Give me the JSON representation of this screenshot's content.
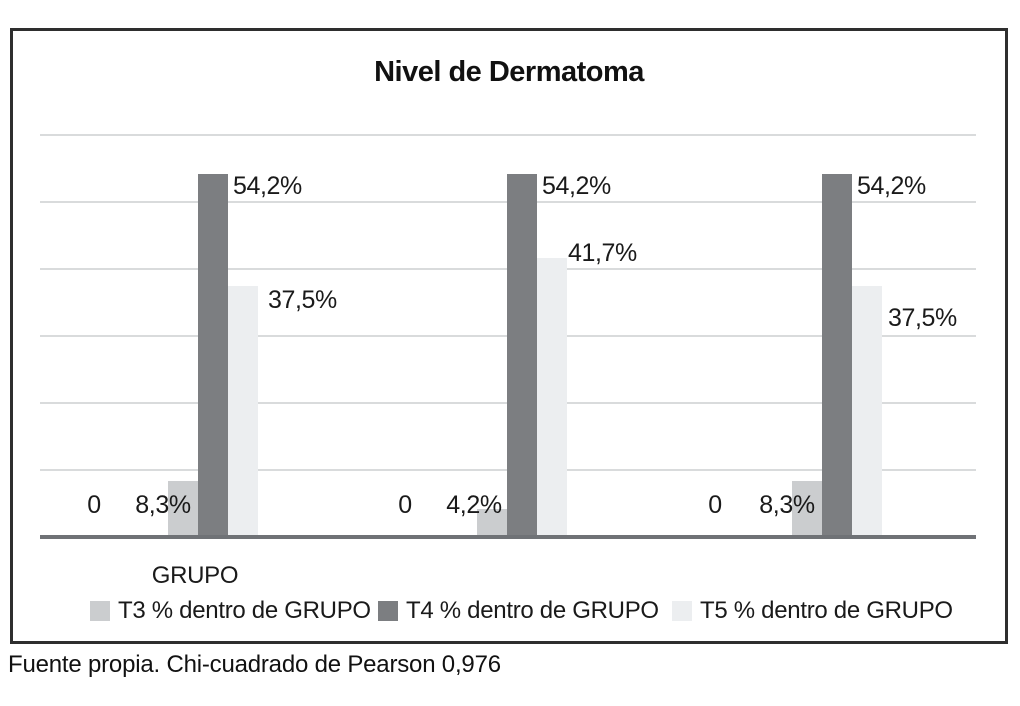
{
  "chart_data": {
    "type": "bar",
    "title": "Nivel de Dermatoma",
    "x_axis_label": "GRUPO",
    "caption": "Fuente propia. Chi-cuadrado de Pearson 0,976",
    "ylim": [
      0,
      60
    ],
    "gridline_step": 10,
    "grid": true,
    "legend_position": "bottom",
    "group_count": 3,
    "categories": [
      "",
      "",
      ""
    ],
    "series": [
      {
        "name": "T3 % dentro de GRUPO",
        "color": "#cbcdcf",
        "values": [
          8.3,
          4.2,
          8.3
        ],
        "data_labels": [
          "8,3%",
          "4,2%",
          "8,3%"
        ]
      },
      {
        "name": "T4 % dentro de GRUPO",
        "color": "#7c7e81",
        "values": [
          54.2,
          54.2,
          54.2
        ],
        "data_labels": [
          "54,2%",
          "54,2%",
          "54,2%"
        ]
      },
      {
        "name": "T5 % dentro de GRUPO",
        "color": "#eceef0",
        "values": [
          37.5,
          41.7,
          37.5
        ],
        "data_labels": [
          "37,5%",
          "41,7%",
          "37,5%"
        ]
      }
    ],
    "zero_value_labels": [
      "0",
      "0",
      "0"
    ],
    "colors": {
      "grid_line": "#d9dbdc",
      "axis_line": "#6f7276",
      "frame_border": "#2e2e2e",
      "label_text": "#1a1a1a",
      "background": "#ffffff"
    }
  }
}
